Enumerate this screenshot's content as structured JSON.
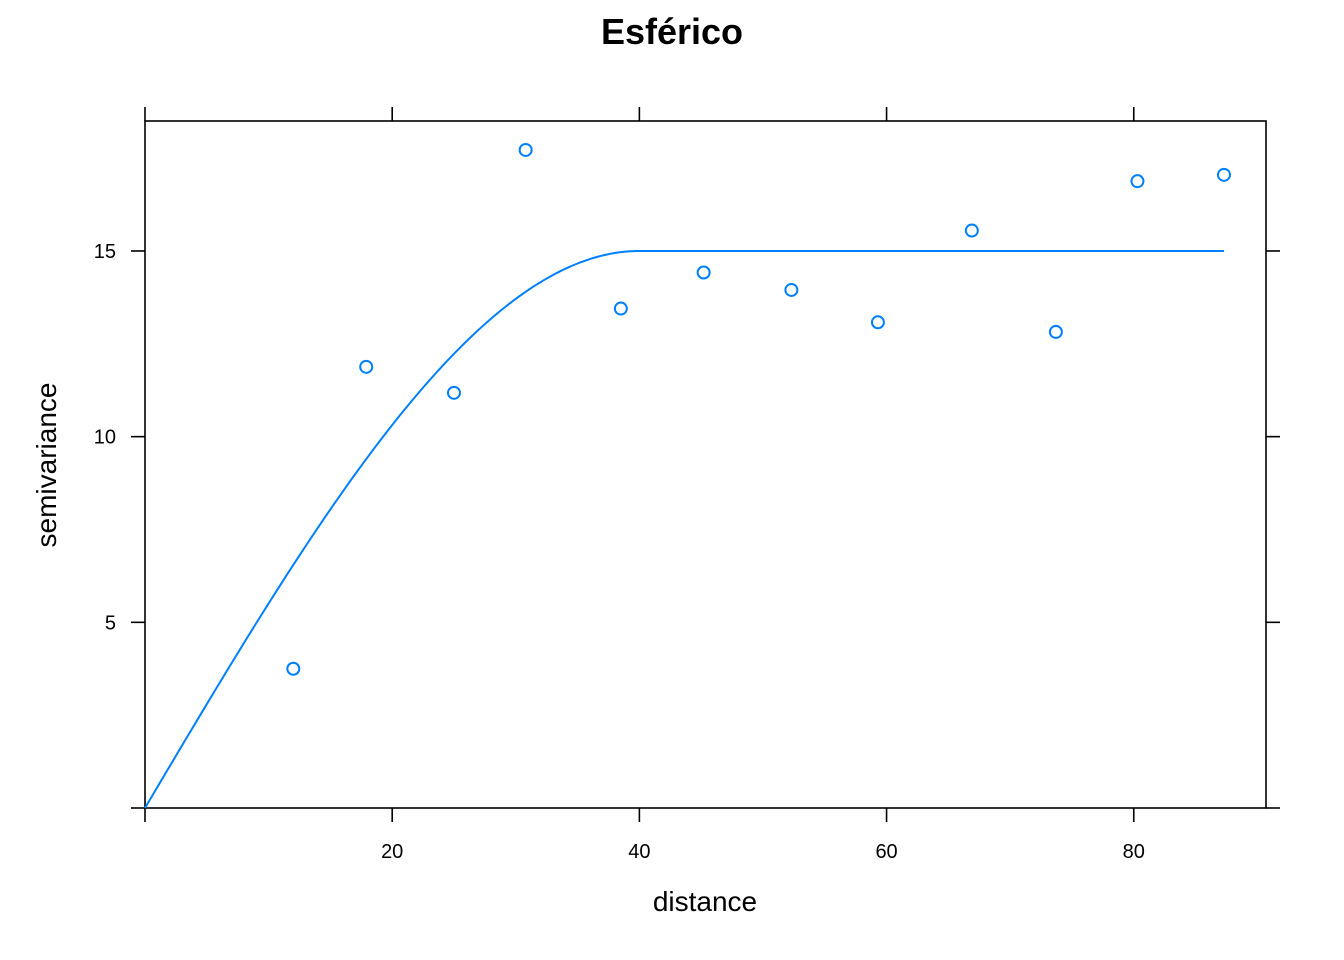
{
  "chart_data": {
    "type": "scatter",
    "title": "Esférico",
    "xlabel": "distance",
    "ylabel": "semivariance",
    "xlim": [
      0,
      90.7
    ],
    "ylim": [
      0,
      18.5
    ],
    "x_ticks": [
      20,
      40,
      60,
      80
    ],
    "y_ticks": [
      5,
      10,
      15
    ],
    "grid": false,
    "color": "#0080ff",
    "points": {
      "x": [
        12.0,
        17.9,
        25.0,
        30.8,
        38.5,
        45.2,
        52.3,
        59.3,
        66.9,
        73.7,
        80.3,
        87.3
      ],
      "y": [
        3.75,
        11.88,
        11.18,
        17.72,
        13.45,
        14.42,
        13.95,
        13.08,
        15.55,
        12.82,
        16.88,
        17.05
      ]
    },
    "model": {
      "type": "spherical",
      "nugget": 0,
      "sill": 15,
      "range": 40,
      "x_max": 87.3
    }
  }
}
